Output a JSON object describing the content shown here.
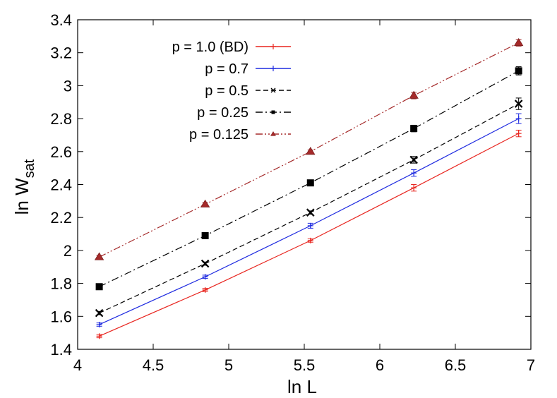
{
  "chart_data": {
    "type": "line",
    "xlabel": "ln L",
    "ylabel_main": "ln W",
    "ylabel_sub": "sat",
    "xlim": [
      4,
      7
    ],
    "ylim": [
      1.4,
      3.4
    ],
    "xticks": [
      "4",
      "4.5",
      "5",
      "5.5",
      "6",
      "6.5",
      "7"
    ],
    "xtick_values": [
      4,
      4.5,
      5,
      5.5,
      6,
      6.5,
      7
    ],
    "yticks": [
      "1.4",
      "1.6",
      "1.8",
      "2",
      "2.2",
      "2.4",
      "2.6",
      "2.8",
      "3",
      "3.2",
      "3.4"
    ],
    "ytick_values": [
      1.4,
      1.6,
      1.8,
      2.0,
      2.2,
      2.4,
      2.6,
      2.8,
      3.0,
      3.2,
      3.4
    ],
    "legend_position": "top-left",
    "x": [
      4.143,
      4.844,
      5.541,
      6.225,
      6.919
    ],
    "series": [
      {
        "name": "p = 1.0 (BD)",
        "color": "#e8251f",
        "dash": "solid",
        "marker": "plus",
        "values": [
          1.48,
          1.76,
          2.06,
          2.38,
          2.71
        ],
        "errors": [
          0.01,
          0.01,
          0.01,
          0.02,
          0.02
        ]
      },
      {
        "name": "p = 0.7",
        "color": "#1f2be0",
        "dash": "solid",
        "marker": "plus",
        "values": [
          1.55,
          1.84,
          2.15,
          2.47,
          2.8
        ],
        "errors": [
          0.01,
          0.01,
          0.015,
          0.02,
          0.03
        ]
      },
      {
        "name": "p = 0.5",
        "color": "#000000",
        "dash": "dashed",
        "marker": "cross",
        "values": [
          1.62,
          1.92,
          2.23,
          2.55,
          2.89
        ],
        "errors": [
          0.01,
          0.01,
          0.01,
          0.02,
          0.035
        ]
      },
      {
        "name": "p = 0.25",
        "color": "#000000",
        "dash": "dashdot",
        "marker": "square",
        "values": [
          1.78,
          2.09,
          2.41,
          2.74,
          3.09
        ],
        "errors": [
          0.01,
          0.01,
          0.01,
          0.02,
          0.025
        ]
      },
      {
        "name": "p = 0.125",
        "color": "#a52a2a",
        "dash": "dashdotdot",
        "marker": "triangle",
        "values": [
          1.96,
          2.28,
          2.6,
          2.94,
          3.26
        ],
        "errors": [
          0.01,
          0.01,
          0.01,
          0.02,
          0.02
        ]
      }
    ]
  }
}
